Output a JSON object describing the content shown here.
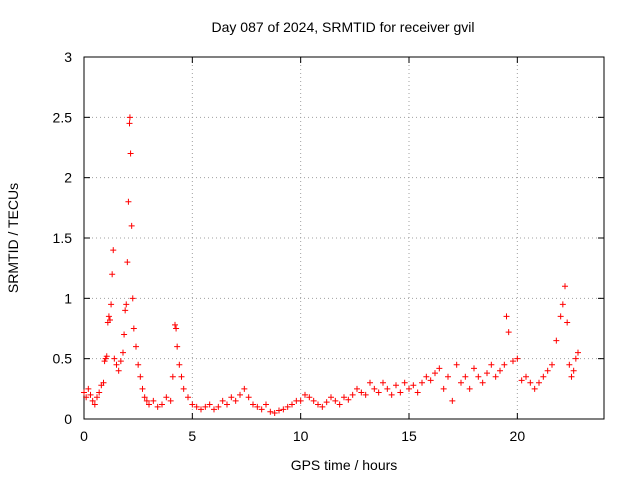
{
  "chart_data": {
    "type": "scatter",
    "title": "Day 087 of 2024, SRMTID for receiver gvil",
    "xlabel": "GPS time / hours",
    "ylabel": "SRMTID / TECUs",
    "xlim": [
      0,
      24
    ],
    "ylim": [
      0,
      3
    ],
    "xticks": [
      0,
      5,
      10,
      15,
      20
    ],
    "xtick_labels": [
      "0",
      "5",
      "10",
      "15",
      "20"
    ],
    "yticks": [
      0,
      0.5,
      1,
      1.5,
      2,
      2.5,
      3
    ],
    "ytick_labels": [
      "0",
      "0.5",
      "1",
      "1.5",
      "2",
      "2.5",
      "3"
    ],
    "grid": true,
    "marker": "+",
    "color": "#ff0000",
    "series": [
      {
        "name": "SRMTID",
        "points": [
          [
            0.0,
            0.22
          ],
          [
            0.1,
            0.18
          ],
          [
            0.2,
            0.25
          ],
          [
            0.3,
            0.2
          ],
          [
            0.4,
            0.15
          ],
          [
            0.5,
            0.12
          ],
          [
            0.6,
            0.18
          ],
          [
            0.7,
            0.22
          ],
          [
            0.8,
            0.28
          ],
          [
            0.9,
            0.3
          ],
          [
            0.95,
            0.48
          ],
          [
            1.0,
            0.5
          ],
          [
            1.05,
            0.52
          ],
          [
            1.1,
            0.8
          ],
          [
            1.15,
            0.85
          ],
          [
            1.2,
            0.82
          ],
          [
            1.25,
            0.95
          ],
          [
            1.3,
            1.2
          ],
          [
            1.35,
            1.4
          ],
          [
            1.4,
            0.5
          ],
          [
            1.5,
            0.45
          ],
          [
            1.6,
            0.4
          ],
          [
            1.7,
            0.48
          ],
          [
            1.8,
            0.55
          ],
          [
            1.85,
            0.7
          ],
          [
            1.9,
            0.9
          ],
          [
            1.95,
            0.95
          ],
          [
            2.0,
            1.3
          ],
          [
            2.05,
            1.8
          ],
          [
            2.1,
            2.45
          ],
          [
            2.12,
            2.5
          ],
          [
            2.15,
            2.2
          ],
          [
            2.2,
            1.6
          ],
          [
            2.25,
            1.0
          ],
          [
            2.3,
            0.75
          ],
          [
            2.4,
            0.6
          ],
          [
            2.5,
            0.45
          ],
          [
            2.6,
            0.35
          ],
          [
            2.7,
            0.25
          ],
          [
            2.8,
            0.18
          ],
          [
            2.9,
            0.15
          ],
          [
            3.0,
            0.12
          ],
          [
            3.2,
            0.15
          ],
          [
            3.4,
            0.1
          ],
          [
            3.6,
            0.12
          ],
          [
            3.8,
            0.18
          ],
          [
            4.0,
            0.15
          ],
          [
            4.1,
            0.35
          ],
          [
            4.2,
            0.78
          ],
          [
            4.25,
            0.75
          ],
          [
            4.3,
            0.6
          ],
          [
            4.4,
            0.45
          ],
          [
            4.5,
            0.35
          ],
          [
            4.6,
            0.25
          ],
          [
            4.8,
            0.18
          ],
          [
            5.0,
            0.12
          ],
          [
            5.2,
            0.1
          ],
          [
            5.4,
            0.08
          ],
          [
            5.6,
            0.1
          ],
          [
            5.8,
            0.12
          ],
          [
            6.0,
            0.08
          ],
          [
            6.2,
            0.1
          ],
          [
            6.4,
            0.15
          ],
          [
            6.6,
            0.12
          ],
          [
            6.8,
            0.18
          ],
          [
            7.0,
            0.15
          ],
          [
            7.2,
            0.2
          ],
          [
            7.4,
            0.25
          ],
          [
            7.6,
            0.18
          ],
          [
            7.8,
            0.12
          ],
          [
            8.0,
            0.1
          ],
          [
            8.2,
            0.08
          ],
          [
            8.4,
            0.12
          ],
          [
            8.6,
            0.06
          ],
          [
            8.8,
            0.05
          ],
          [
            9.0,
            0.07
          ],
          [
            9.2,
            0.08
          ],
          [
            9.4,
            0.1
          ],
          [
            9.6,
            0.12
          ],
          [
            9.8,
            0.15
          ],
          [
            10.0,
            0.15
          ],
          [
            10.2,
            0.2
          ],
          [
            10.4,
            0.18
          ],
          [
            10.6,
            0.15
          ],
          [
            10.8,
            0.12
          ],
          [
            11.0,
            0.1
          ],
          [
            11.2,
            0.14
          ],
          [
            11.4,
            0.18
          ],
          [
            11.6,
            0.15
          ],
          [
            11.8,
            0.12
          ],
          [
            12.0,
            0.18
          ],
          [
            12.2,
            0.16
          ],
          [
            12.4,
            0.2
          ],
          [
            12.6,
            0.25
          ],
          [
            12.8,
            0.22
          ],
          [
            13.0,
            0.2
          ],
          [
            13.2,
            0.3
          ],
          [
            13.4,
            0.25
          ],
          [
            13.6,
            0.22
          ],
          [
            13.8,
            0.3
          ],
          [
            14.0,
            0.25
          ],
          [
            14.2,
            0.2
          ],
          [
            14.4,
            0.28
          ],
          [
            14.6,
            0.22
          ],
          [
            14.8,
            0.3
          ],
          [
            15.0,
            0.25
          ],
          [
            15.2,
            0.28
          ],
          [
            15.4,
            0.22
          ],
          [
            15.6,
            0.3
          ],
          [
            15.8,
            0.35
          ],
          [
            16.0,
            0.32
          ],
          [
            16.2,
            0.38
          ],
          [
            16.4,
            0.42
          ],
          [
            16.6,
            0.25
          ],
          [
            16.8,
            0.35
          ],
          [
            17.0,
            0.15
          ],
          [
            17.2,
            0.45
          ],
          [
            17.4,
            0.3
          ],
          [
            17.6,
            0.35
          ],
          [
            17.8,
            0.25
          ],
          [
            18.0,
            0.42
          ],
          [
            18.2,
            0.35
          ],
          [
            18.4,
            0.3
          ],
          [
            18.6,
            0.38
          ],
          [
            18.8,
            0.45
          ],
          [
            19.0,
            0.35
          ],
          [
            19.2,
            0.4
          ],
          [
            19.4,
            0.45
          ],
          [
            19.5,
            0.85
          ],
          [
            19.6,
            0.72
          ],
          [
            19.8,
            0.48
          ],
          [
            20.0,
            0.5
          ],
          [
            20.2,
            0.32
          ],
          [
            20.4,
            0.35
          ],
          [
            20.6,
            0.3
          ],
          [
            20.8,
            0.25
          ],
          [
            21.0,
            0.3
          ],
          [
            21.2,
            0.35
          ],
          [
            21.4,
            0.4
          ],
          [
            21.6,
            0.45
          ],
          [
            21.8,
            0.65
          ],
          [
            22.0,
            0.85
          ],
          [
            22.1,
            0.95
          ],
          [
            22.2,
            1.1
          ],
          [
            22.3,
            0.8
          ],
          [
            22.4,
            0.45
          ],
          [
            22.5,
            0.35
          ],
          [
            22.6,
            0.4
          ],
          [
            22.7,
            0.5
          ],
          [
            22.8,
            0.55
          ]
        ]
      }
    ]
  }
}
